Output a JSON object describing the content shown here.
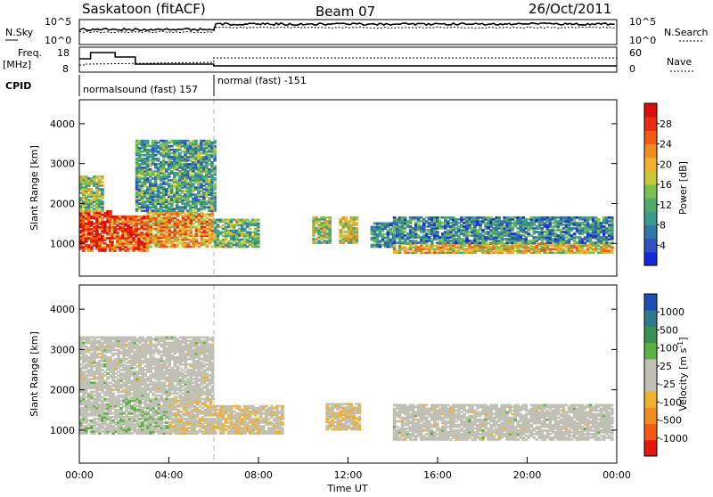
{
  "header": {
    "station": "Saskatoon (fitACF)",
    "beam": "Beam 07",
    "date": "26/Oct/2011"
  },
  "panels": {
    "nsky": {
      "label": "N.Sky",
      "right_label": "N.Search",
      "ticks": [
        "10^5",
        "10^0"
      ]
    },
    "freq": {
      "label_line1": "Freq.",
      "label_line2": "[MHz]",
      "ticks_left": [
        "18",
        "8"
      ],
      "ticks_right": [
        "60",
        "0"
      ],
      "right_label": "Nave"
    },
    "cpid": {
      "label": "CPID",
      "modes": [
        {
          "name": "normalsound (fast) 157",
          "start": "00:00",
          "end": "06:00"
        },
        {
          "name": "normal (fast) -151",
          "start": "06:00",
          "end": "24:00"
        }
      ]
    }
  },
  "chart_data": [
    {
      "type": "heatmap",
      "title": "",
      "xlabel": "",
      "ylabel": "Slant Range [km]",
      "yticks": [
        "1000",
        "2000",
        "3000",
        "4000"
      ],
      "ylim": [
        180,
        4600
      ],
      "colorbar": {
        "label": "Power [dB]",
        "ticks": [
          "4",
          "8",
          "12",
          "16",
          "20",
          "24",
          "28"
        ],
        "range": [
          0,
          30
        ],
        "colors": [
          "#1428d8",
          "#3050c0",
          "#2f78a8",
          "#3a9a8a",
          "#4eab6a",
          "#7cc050",
          "#c8c83a",
          "#f0b030",
          "#f08c20",
          "#f05a14",
          "#e82a10",
          "#d8100c"
        ]
      },
      "regions": [
        {
          "t0": 0.0,
          "t1": 1.4,
          "r0": 800,
          "r1": 1800,
          "db": 26
        },
        {
          "t0": 0.0,
          "t1": 1.0,
          "r0": 1800,
          "r1": 2700,
          "db": 14
        },
        {
          "t0": 1.4,
          "t1": 3.0,
          "r0": 800,
          "r1": 1700,
          "db": 24
        },
        {
          "t0": 3.0,
          "t1": 6.0,
          "r0": 900,
          "r1": 1800,
          "db": 20
        },
        {
          "t0": 2.5,
          "t1": 6.0,
          "r0": 1800,
          "r1": 3600,
          "db": 10
        },
        {
          "t0": 6.0,
          "t1": 8.0,
          "r0": 900,
          "r1": 1600,
          "db": 12
        },
        {
          "t0": 10.4,
          "t1": 11.2,
          "r0": 1000,
          "r1": 1650,
          "db": 14
        },
        {
          "t0": 11.6,
          "t1": 12.4,
          "r0": 1000,
          "r1": 1650,
          "db": 16
        },
        {
          "t0": 13.0,
          "t1": 14.0,
          "r0": 900,
          "r1": 1500,
          "db": 8
        },
        {
          "t0": 14.0,
          "t1": 23.8,
          "r0": 750,
          "r1": 1000,
          "db": 18
        },
        {
          "t0": 14.0,
          "t1": 23.8,
          "r0": 1000,
          "r1": 1650,
          "db": 8
        }
      ]
    },
    {
      "type": "heatmap",
      "title": "",
      "xlabel": "Time UT",
      "ylabel": "Slant Range [km]",
      "yticks": [
        "1000",
        "2000",
        "3000",
        "4000"
      ],
      "ylim": [
        180,
        4600
      ],
      "xticks": [
        "00:00",
        "04:00",
        "08:00",
        "12:00",
        "16:00",
        "20:00",
        "00:00"
      ],
      "xlim_hours": [
        0,
        24
      ],
      "colorbar": {
        "label": "Velocity [m s",
        "label_sup": "-1",
        "label_end": "]",
        "ticks": [
          "-1000",
          "-500",
          "-100",
          "-25",
          "25",
          "100",
          "500",
          "1000"
        ],
        "range": [
          -1200,
          1200
        ],
        "colors": [
          "#e01810",
          "#f05a14",
          "#f08c20",
          "#f0b030",
          "#c0c0b4",
          "#c0c0b4",
          "#5cb040",
          "#3a9050",
          "#2f7890",
          "#1c50b0"
        ]
      },
      "regions": [
        {
          "t0": 0.0,
          "t1": 1.8,
          "r0": 900,
          "r1": 1800,
          "v": 60
        },
        {
          "t0": 1.8,
          "t1": 4.0,
          "r0": 900,
          "r1": 1800,
          "v": 120
        },
        {
          "t0": 4.0,
          "t1": 6.0,
          "r0": 900,
          "r1": 1800,
          "v": -120
        },
        {
          "t0": 0.0,
          "t1": 6.0,
          "r0": 1800,
          "r1": 3300,
          "v": 0
        },
        {
          "t0": 6.0,
          "t1": 9.0,
          "r0": 900,
          "r1": 1600,
          "v": -150
        },
        {
          "t0": 11.0,
          "t1": 12.5,
          "r0": 1000,
          "r1": 1650,
          "v": -200
        },
        {
          "t0": 14.0,
          "t1": 23.8,
          "r0": 750,
          "r1": 1650,
          "v": 0
        }
      ]
    }
  ]
}
